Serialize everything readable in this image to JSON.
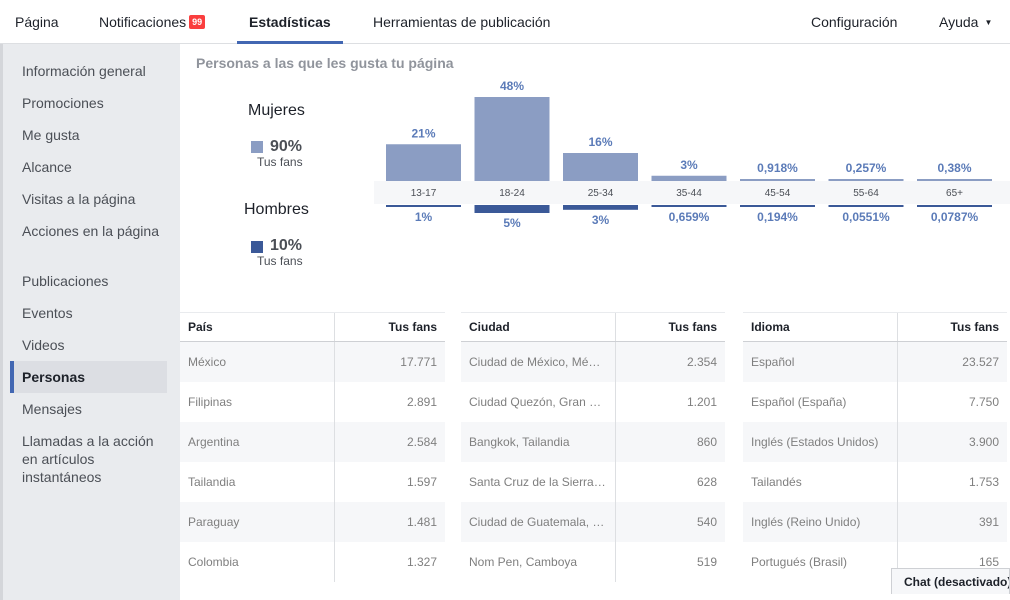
{
  "topnav": {
    "tabs": [
      {
        "label": "Página"
      },
      {
        "label": "Notificaciones",
        "badge": "99"
      },
      {
        "label": "Estadísticas"
      },
      {
        "label": "Herramientas de publicación"
      }
    ],
    "right": [
      {
        "label": "Configuración"
      },
      {
        "label": "Ayuda"
      }
    ]
  },
  "sidebar": {
    "items": [
      {
        "label": "Información general"
      },
      {
        "label": "Promociones"
      },
      {
        "label": "Me gusta"
      },
      {
        "label": "Alcance"
      },
      {
        "label": "Visitas a la página"
      },
      {
        "label": "Acciones en la página"
      },
      {
        "label": "Publicaciones"
      },
      {
        "label": "Eventos"
      },
      {
        "label": "Videos"
      },
      {
        "label": "Personas"
      },
      {
        "label": "Mensajes"
      },
      {
        "label": "Llamadas a la acción en artículos instantáneos"
      }
    ]
  },
  "main": {
    "section_title": "Personas a las que les gusta tu página",
    "women": {
      "label": "Mujeres",
      "pct": "90%",
      "sub": "Tus fans"
    },
    "men": {
      "label": "Hombres",
      "pct": "10%",
      "sub": "Tus fans"
    }
  },
  "chart_data": {
    "type": "bar",
    "categories": [
      "13-17",
      "18-24",
      "25-34",
      "35-44",
      "45-54",
      "55-64",
      "65+"
    ],
    "series": [
      {
        "name": "Mujeres",
        "values": [
          21,
          48,
          16,
          3,
          0.918,
          0.257,
          0.38
        ],
        "labels": [
          "21%",
          "48%",
          "16%",
          "3%",
          "0,918%",
          "0,257%",
          "0,38%"
        ],
        "color": "#8b9dc3"
      },
      {
        "name": "Hombres",
        "values": [
          1,
          5,
          3,
          0.659,
          0.194,
          0.0551,
          0.0787
        ],
        "labels": [
          "1%",
          "5%",
          "3%",
          "0,659%",
          "0,194%",
          "0,0551%",
          "0,0787%"
        ],
        "color": "#3b5998"
      }
    ]
  },
  "tables": {
    "country": {
      "headers": [
        "País",
        "Tus fans"
      ],
      "rows": [
        [
          "México",
          "17.771"
        ],
        [
          "Filipinas",
          "2.891"
        ],
        [
          "Argentina",
          "2.584"
        ],
        [
          "Tailandia",
          "1.597"
        ],
        [
          "Paraguay",
          "1.481"
        ],
        [
          "Colombia",
          "1.327"
        ]
      ]
    },
    "city": {
      "headers": [
        "Ciudad",
        "Tus fans"
      ],
      "rows": [
        [
          "Ciudad de México, Mé…",
          "2.354"
        ],
        [
          "Ciudad Quezón, Gran …",
          "1.201"
        ],
        [
          "Bangkok, Tailandia",
          "860"
        ],
        [
          "Santa Cruz de la Sierra…",
          "628"
        ],
        [
          "Ciudad de Guatemala, …",
          "540"
        ],
        [
          "Nom Pen, Camboya",
          "519"
        ]
      ]
    },
    "language": {
      "headers": [
        "Idioma",
        "Tus fans"
      ],
      "rows": [
        [
          "Español",
          "23.527"
        ],
        [
          "Español (España)",
          "7.750"
        ],
        [
          "Inglés (Estados Unidos)",
          "3.900"
        ],
        [
          "Tailandés",
          "1.753"
        ],
        [
          "Inglés (Reino Unido)",
          "391"
        ],
        [
          "Portugués (Brasil)",
          "165"
        ]
      ]
    }
  },
  "chat": {
    "label": "Chat (desactivado)"
  },
  "colors": {
    "accent": "#4267b2",
    "women": "#8b9dc3",
    "men": "#3b5998",
    "badge": "#fa3e3e"
  }
}
